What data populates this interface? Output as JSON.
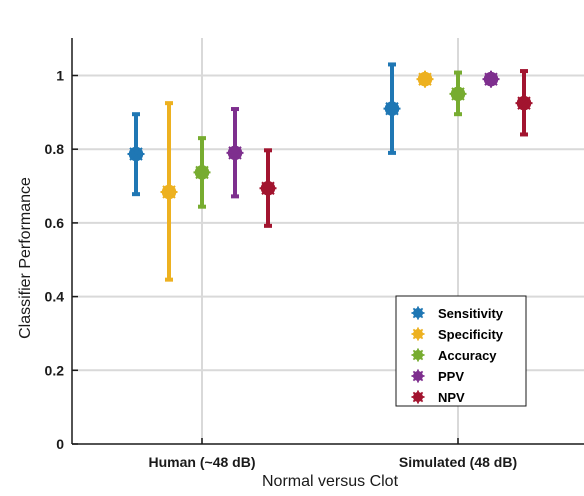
{
  "chart_data": {
    "type": "scatter",
    "title": "",
    "xlabel": "Normal versus Clot",
    "ylabel": "Classifier Performance",
    "categories": [
      "Human (~48 dB)",
      "Simulated (48 dB)"
    ],
    "ylim": [
      0,
      1.1
    ],
    "yticks": [
      "0",
      "0.2",
      "0.4",
      "0.6",
      "0.8",
      "1"
    ],
    "grid": true,
    "legend_position": "bottom-right",
    "series": [
      {
        "name": "Sensitivity",
        "color": "#1f77b4",
        "values": [
          0.787,
          0.91
        ],
        "lower": [
          0.678,
          0.79
        ],
        "upper": [
          0.895,
          1.03
        ]
      },
      {
        "name": "Specificity",
        "color": "#edb120",
        "values": [
          0.684,
          0.99
        ],
        "lower": [
          0.446,
          0.99
        ],
        "upper": [
          0.925,
          0.99
        ]
      },
      {
        "name": "Accuracy",
        "color": "#77ac30",
        "values": [
          0.737,
          0.95
        ],
        "lower": [
          0.644,
          0.895
        ],
        "upper": [
          0.83,
          1.008
        ]
      },
      {
        "name": "PPV",
        "color": "#7e2f8e",
        "values": [
          0.79,
          0.99
        ],
        "lower": [
          0.672,
          0.99
        ],
        "upper": [
          0.909,
          0.99
        ]
      },
      {
        "name": "NPV",
        "color": "#a2142f",
        "values": [
          0.694,
          0.925
        ],
        "lower": [
          0.592,
          0.84
        ],
        "upper": [
          0.797,
          1.012
        ]
      }
    ]
  }
}
